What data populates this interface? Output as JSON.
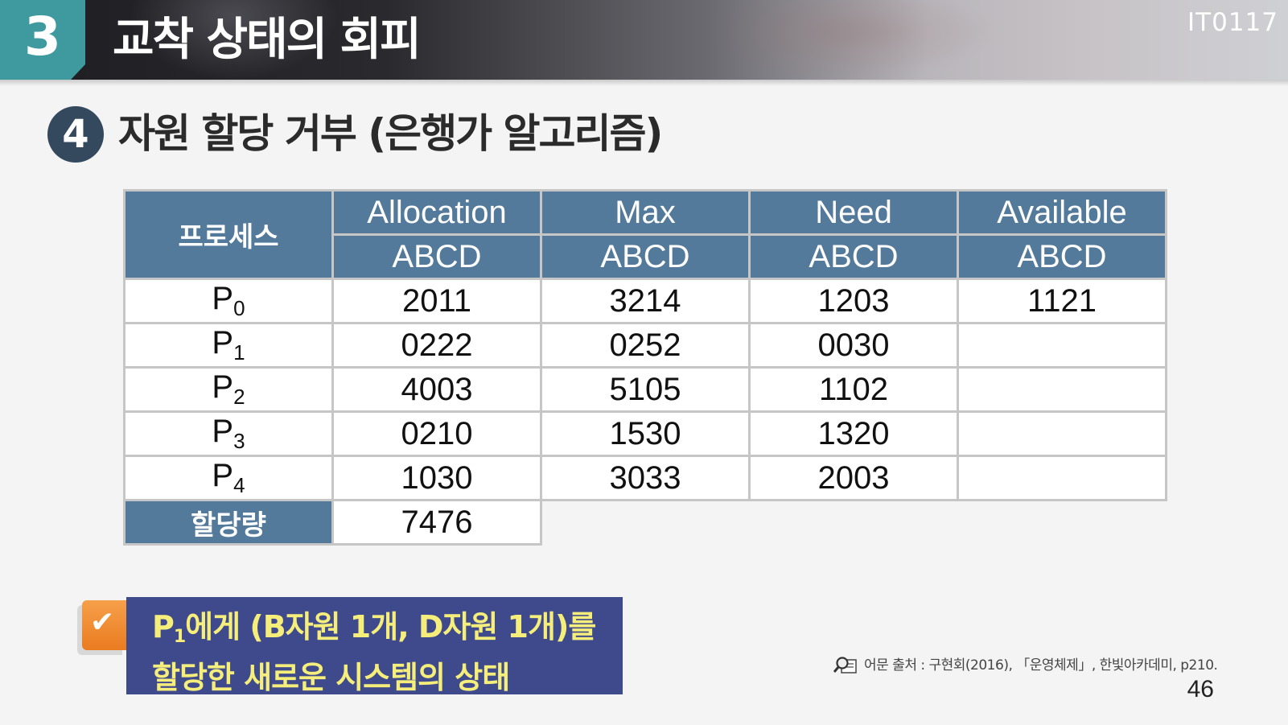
{
  "header": {
    "section_number": "3",
    "title": "교착 상태의 회피",
    "course_code": "IT0117"
  },
  "subsection": {
    "number": "4",
    "title": "자원 할당 거부 (은행가 알고리즘)"
  },
  "table": {
    "process_header": "프로세스",
    "columns": [
      "Allocation",
      "Max",
      "Need",
      "Available"
    ],
    "subheaders": [
      "ABCD",
      "ABCD",
      "ABCD",
      "ABCD"
    ],
    "rows": [
      {
        "p": "P",
        "sub": "0",
        "allocation": "2011",
        "max": "3214",
        "need": "1203",
        "available": "1121"
      },
      {
        "p": "P",
        "sub": "1",
        "allocation": "0222",
        "max": "0252",
        "need": "0030",
        "available": ""
      },
      {
        "p": "P",
        "sub": "2",
        "allocation": "4003",
        "max": "5105",
        "need": "1102",
        "available": ""
      },
      {
        "p": "P",
        "sub": "3",
        "allocation": "0210",
        "max": "1530",
        "need": "1320",
        "available": ""
      },
      {
        "p": "P",
        "sub": "4",
        "allocation": "1030",
        "max": "3033",
        "need": "2003",
        "available": ""
      }
    ],
    "total_label": "할당량",
    "total_value": "7476"
  },
  "note": {
    "line1_prefix": "P",
    "line1_sub": "1",
    "line1_rest": "에게 (B자원 1개, D자원 1개)를",
    "line2": "할당한 새로운 시스템의 상태"
  },
  "source": {
    "icon": "magnifier-book-icon",
    "text": "어문 출처 : 구현회(2016), 「운영체제」, 한빛아카데미, p210."
  },
  "page_number": "46",
  "colors": {
    "section_badge": "#3f9aa0",
    "table_header": "#547a9b",
    "note_bg": "#3e4a8c",
    "note_text": "#f6ee7a",
    "check_badge": "#ea7b20"
  }
}
